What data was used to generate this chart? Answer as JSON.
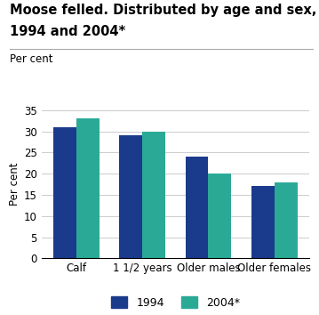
{
  "title_line1": "Moose felled. Distributed by age and sex, per cent.",
  "title_line2": "1994 and 2004*",
  "ylabel": "Per cent",
  "categories": [
    "Calf",
    "1 1/2 years",
    "Older males",
    "Older females"
  ],
  "series": [
    {
      "label": "1994",
      "values": [
        31,
        29,
        24,
        17
      ],
      "color": "#1a3a8c"
    },
    {
      "label": "2004*",
      "values": [
        33,
        30,
        20,
        18
      ],
      "color": "#2aaa96"
    }
  ],
  "ylim": [
    0,
    35
  ],
  "yticks": [
    0,
    5,
    10,
    15,
    20,
    25,
    30,
    35
  ],
  "bar_width": 0.35,
  "background_color": "#ffffff",
  "grid_color": "#cccccc",
  "title_fontsize": 10.5,
  "axis_label_fontsize": 8.5,
  "tick_fontsize": 8.5,
  "legend_fontsize": 9,
  "separator_color": "#aaaaaa"
}
